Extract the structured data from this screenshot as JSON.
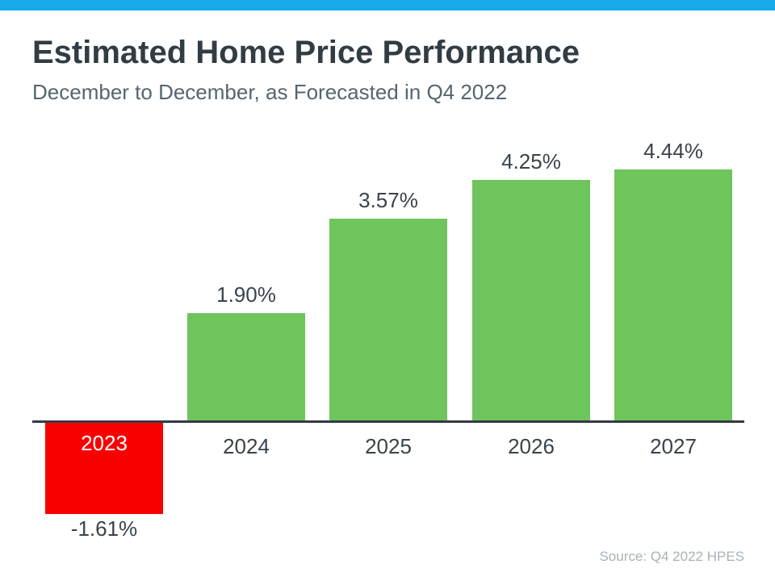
{
  "page": {
    "accent_bar_color": "#18abe9",
    "background": "#ffffff"
  },
  "header": {
    "title": "Estimated Home Price Performance",
    "subtitle": "December to December, as Forecasted in Q4 2022"
  },
  "source_note": "Source: Q4 2022 HPES",
  "chart_data": {
    "type": "bar",
    "title": "Estimated Home Price Performance",
    "subtitle": "December to December, as Forecasted in Q4 2022",
    "categories": [
      "2023",
      "2024",
      "2025",
      "2026",
      "2027"
    ],
    "values": [
      -1.61,
      1.9,
      3.57,
      4.25,
      4.44
    ],
    "value_labels": [
      "-1.61%",
      "1.90%",
      "3.57%",
      "4.25%",
      "4.44%"
    ],
    "xlabel": "",
    "ylabel": "",
    "ylim": [
      -2,
      5
    ],
    "grid": false,
    "legend": "none",
    "colors": {
      "positive_bar": "#6ec55c",
      "negative_bar": "#fb0000",
      "axis_line": "#333b42",
      "title_text": "#323c43",
      "subtitle_text": "#56656f",
      "label_text": "#3a434c",
      "negative_category_text": "#ffffff",
      "source_text": "#a8b2ba"
    }
  }
}
